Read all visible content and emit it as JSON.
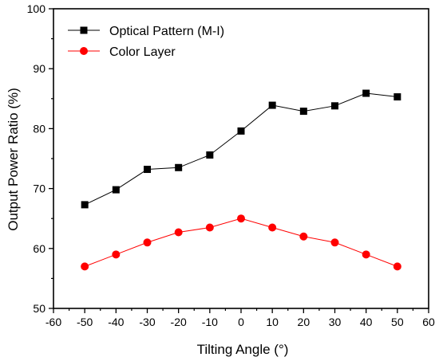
{
  "chart_data": {
    "type": "line",
    "title": "",
    "xlabel": "Tilting Angle (°)",
    "ylabel": "Output Power Ratio (%)",
    "xlim": [
      -60,
      60
    ],
    "ylim": [
      50,
      100
    ],
    "xticks": [
      -60,
      -50,
      -40,
      -30,
      -20,
      -10,
      0,
      10,
      20,
      30,
      40,
      50,
      60
    ],
    "yticks": [
      50,
      60,
      70,
      80,
      90,
      100
    ],
    "grid": false,
    "legend_position": "top-left",
    "x": [
      -50,
      -40,
      -30,
      -20,
      -10,
      0,
      10,
      20,
      30,
      40,
      50
    ],
    "series": [
      {
        "name": "Optical Pattern (M-I)",
        "marker": "square",
        "marker_color": "#000000",
        "line_color": "#000000",
        "values": [
          67.3,
          69.8,
          73.2,
          73.5,
          75.6,
          79.6,
          83.9,
          82.9,
          83.8,
          85.9,
          85.3
        ]
      },
      {
        "name": "Color Layer",
        "marker": "circle",
        "marker_color": "#ff0000",
        "line_color": "#ff0000",
        "values": [
          57.0,
          59.0,
          61.0,
          62.7,
          63.5,
          65.0,
          63.5,
          62.0,
          61.0,
          59.0,
          57.0
        ]
      }
    ]
  }
}
